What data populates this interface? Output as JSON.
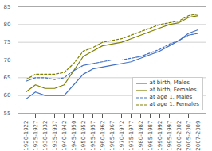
{
  "chart_data": {
    "type": "line",
    "categories": [
      "1920-1922",
      "1925-1927",
      "1930-1932",
      "1935-1937",
      "1940-1942",
      "1945-1950",
      "1950-1952",
      "1955-1957",
      "1960-1962",
      "1965-1967",
      "1970-1972",
      "1975-1977",
      "1980-1982",
      "1985-1987",
      "1990-1992",
      "1995-1997",
      "2000-2002",
      "2005-2007",
      "2007-2009"
    ],
    "series": [
      {
        "name": "at birth, Males",
        "color": "#4472C4",
        "line_style": "solid",
        "values": [
          59,
          61,
          60,
          60,
          60,
          63,
          66,
          67.5,
          68,
          68.5,
          69,
          69.5,
          70.5,
          71.5,
          72.5,
          74,
          75.5,
          77.5,
          78.5
        ]
      },
      {
        "name": "at birth, Females",
        "color": "#808000",
        "line_style": "solid",
        "values": [
          61,
          63,
          62,
          62,
          63,
          67,
          71,
          72.5,
          74,
          74.5,
          75,
          76,
          77,
          78,
          79,
          80,
          80.5,
          82,
          82.5
        ]
      },
      {
        "name": "at age 1, Males",
        "color": "#4472C4",
        "line_style": "dashed",
        "values": [
          64,
          65,
          65,
          64.5,
          65,
          67,
          68.5,
          69,
          69.5,
          70,
          70,
          70.5,
          71,
          72,
          73,
          74.5,
          75.5,
          77,
          77.5
        ]
      },
      {
        "name": "at age 1, Females",
        "color": "#808000",
        "line_style": "dashed",
        "values": [
          64.5,
          66,
          66,
          66,
          66.5,
          69,
          72.5,
          73.5,
          75,
          75.5,
          76,
          77,
          78,
          79,
          80,
          80.5,
          81,
          82.5,
          83
        ]
      }
    ],
    "ylim": [
      55,
      85
    ],
    "yticks": [
      55,
      60,
      65,
      70,
      75,
      80,
      85
    ],
    "grid": true,
    "legend": "lower right"
  }
}
